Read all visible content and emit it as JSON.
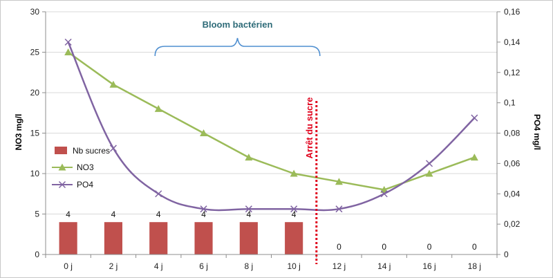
{
  "chart_data": {
    "type": "bar+line",
    "categories": [
      "0 j",
      "2 j",
      "4 j",
      "6 j",
      "8 j",
      "10 j",
      "12 j",
      "14 j",
      "16 j",
      "18 j"
    ],
    "series": [
      {
        "name": "Nb sucres",
        "type": "bar",
        "axis": "left",
        "color": "#c0504d",
        "values": [
          4,
          4,
          4,
          4,
          4,
          4,
          0,
          0,
          0,
          0
        ],
        "data_labels": [
          "4",
          "4",
          "4",
          "4",
          "4",
          "4",
          "0",
          "0",
          "0",
          "0"
        ]
      },
      {
        "name": "NO3",
        "type": "line",
        "axis": "left",
        "marker": "triangle",
        "color": "#9bbb59",
        "values": [
          25,
          21,
          18,
          15,
          12,
          10,
          9,
          8,
          10,
          12
        ]
      },
      {
        "name": "PO4",
        "type": "line",
        "axis": "right",
        "marker": "x",
        "color": "#8064a2",
        "values": [
          0.14,
          0.07,
          0.04,
          0.03,
          0.03,
          0.03,
          0.03,
          0.04,
          0.06,
          0.09
        ]
      }
    ],
    "y_left": {
      "label": "NO3 mg/l",
      "min": 0,
      "max": 30,
      "ticks": [
        "0",
        "5",
        "10",
        "15",
        "20",
        "25",
        "30"
      ]
    },
    "y_right": {
      "label": "PO4 mg/l",
      "min": 0,
      "max": 0.16,
      "ticks": [
        "0",
        "0,02",
        "0,04",
        "0,06",
        "0,08",
        "0,1",
        "0,12",
        "0,14",
        "0,16"
      ]
    },
    "grid": "horizontal",
    "legend": "left-middle",
    "annotations": {
      "bloom_label": "Bloom bactérien",
      "bloom_range": [
        "4 j",
        "12 j"
      ],
      "stop_label": "Arrêt du sucre",
      "stop_between": [
        "10 j",
        "12 j"
      ]
    }
  }
}
